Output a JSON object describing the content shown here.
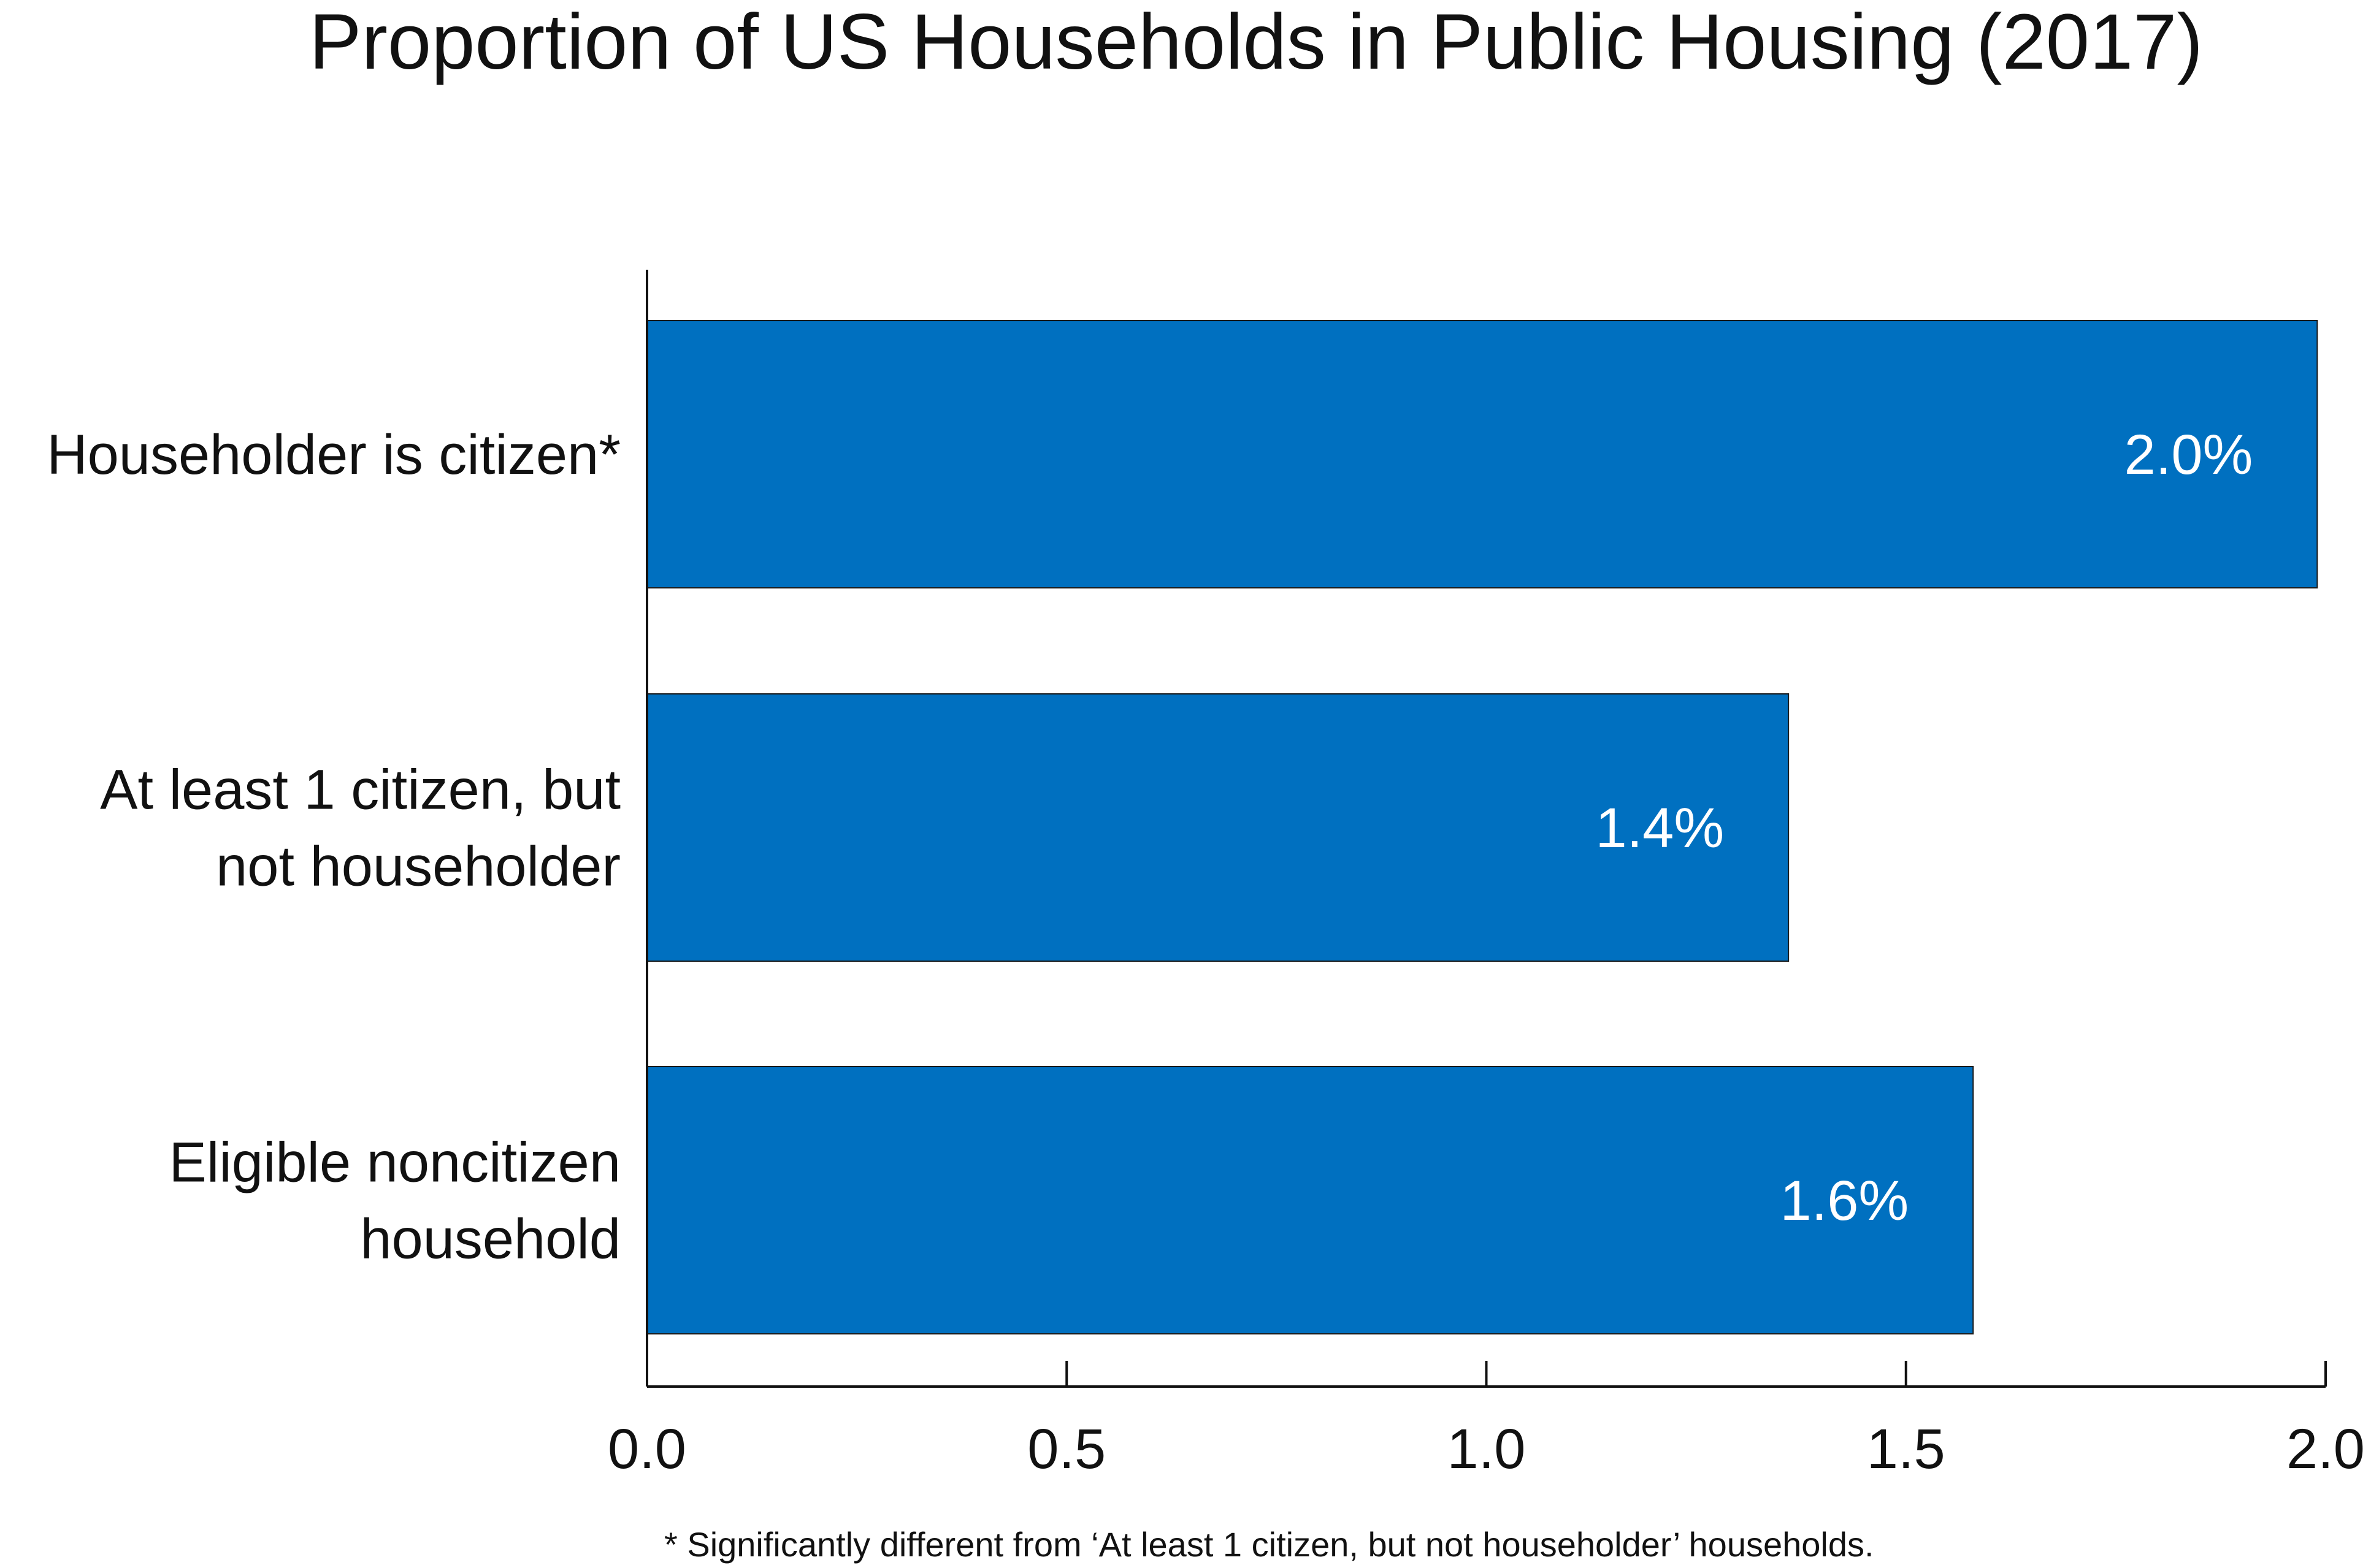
{
  "chart_data": {
    "type": "bar",
    "orientation": "horizontal",
    "title": "Proportion of US Households in Public Housing (2017)",
    "categories": [
      [
        "Householder is citizen*"
      ],
      [
        "At least 1 citizen, but",
        "not householder"
      ],
      [
        "Eligible noncitizen",
        "household"
      ]
    ],
    "values": [
      1.99,
      1.36,
      1.58
    ],
    "data_labels": [
      "2.0%",
      "1.4%",
      "1.6%"
    ],
    "xlim": [
      0,
      2.0
    ],
    "xticks": [
      0.0,
      0.5,
      1.0,
      1.5,
      2.0
    ],
    "xtick_labels": [
      "0.0",
      "0.5",
      "1.0",
      "1.5",
      "2.0"
    ],
    "xlabel": "",
    "ylabel": "",
    "grid": false,
    "legend": "none",
    "bar_color": "#0070c0",
    "footnote": "* Significantly different from ‘At least 1 citizen, but not householder’ households."
  }
}
